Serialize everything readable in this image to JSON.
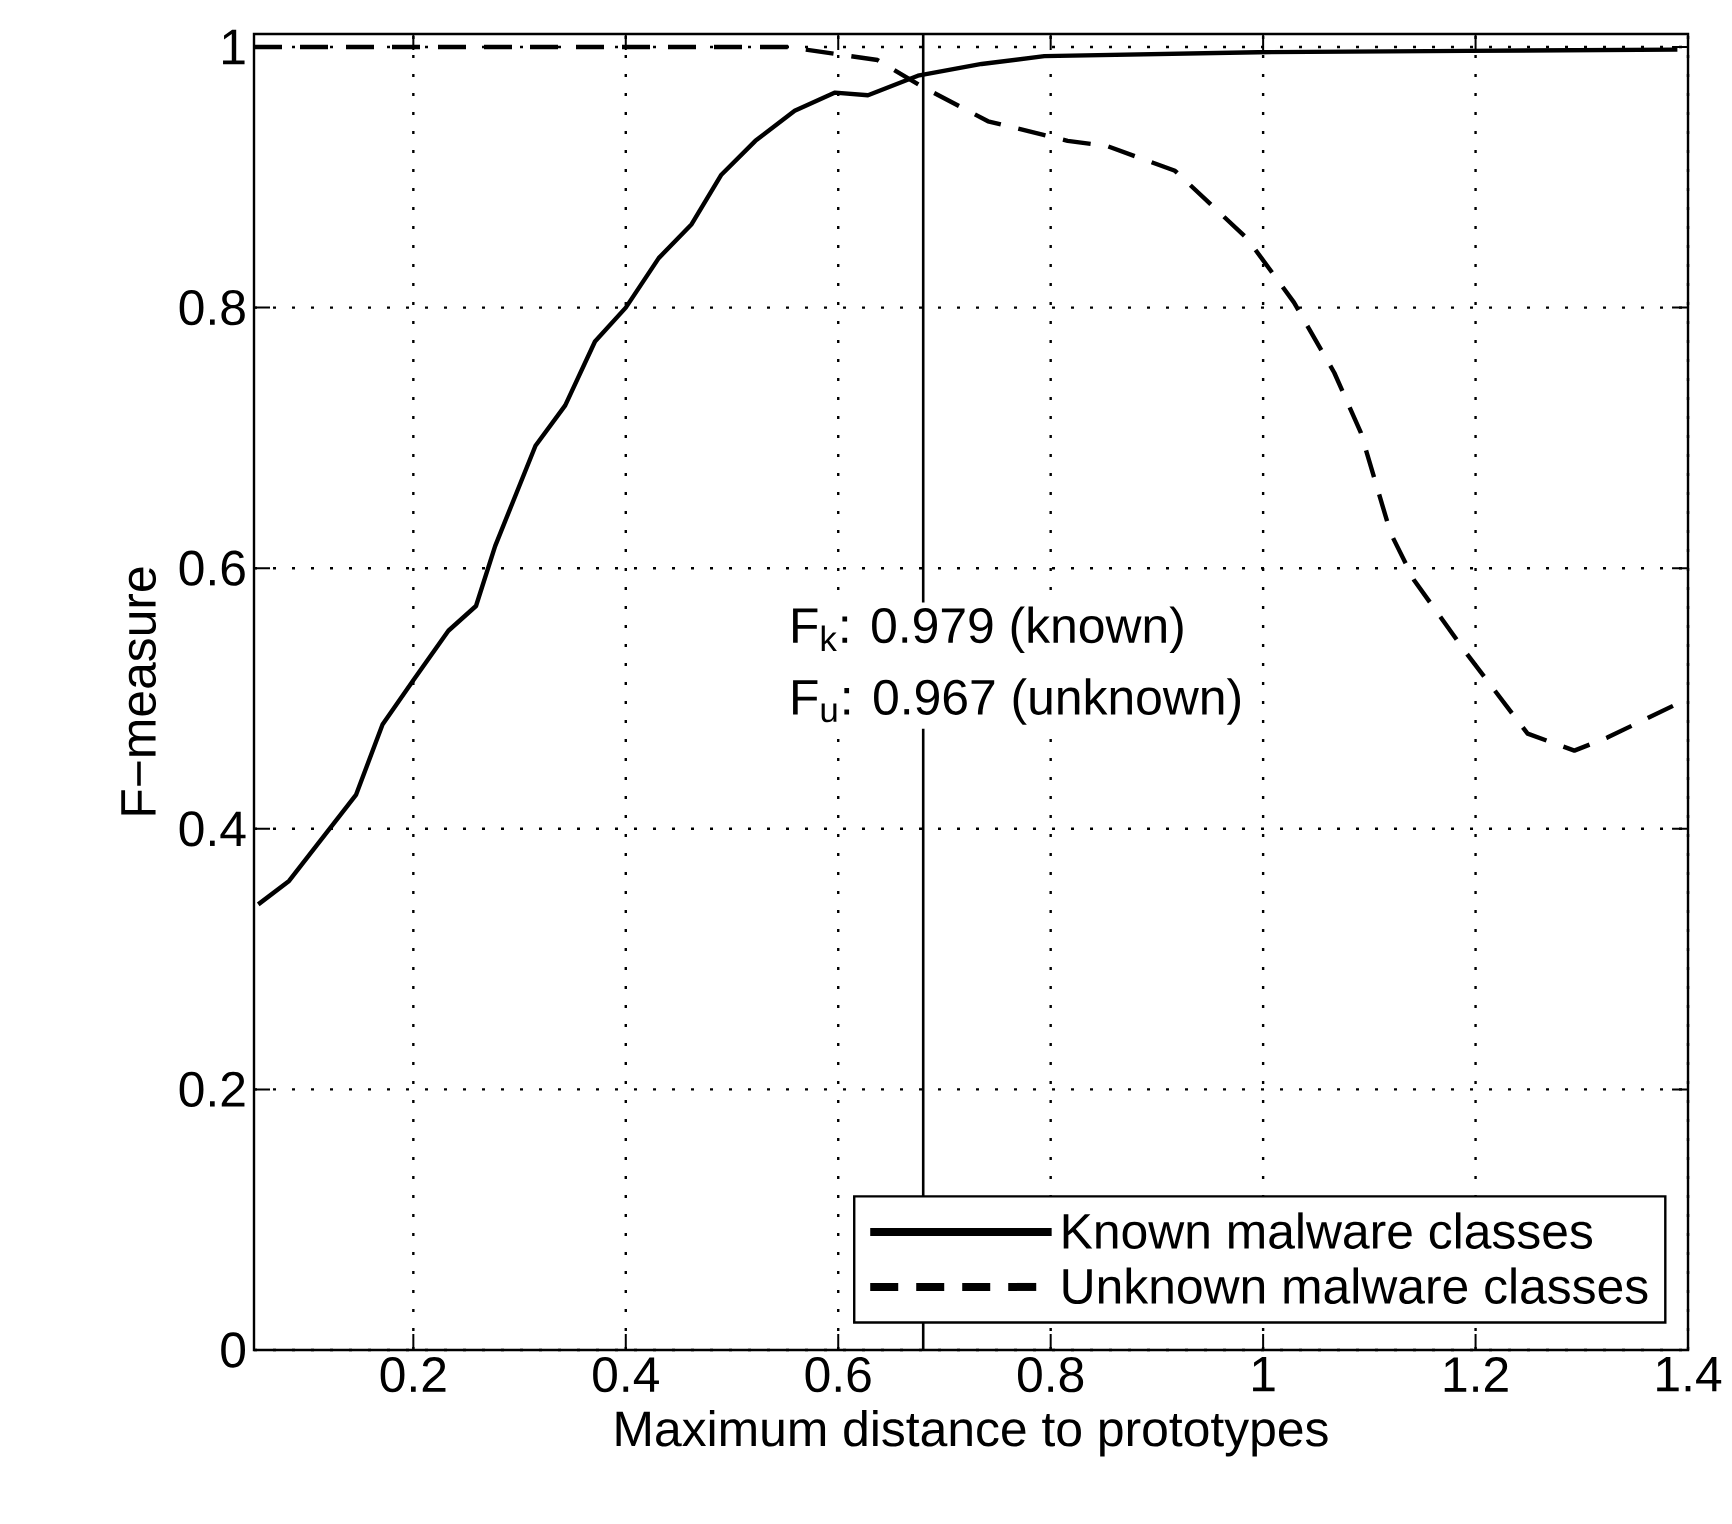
{
  "chart_data": {
    "type": "line",
    "xlabel": "Maximum distance to prototypes",
    "ylabel": "F−measure",
    "xlim": [
      0.05,
      1.4
    ],
    "ylim": [
      0,
      1.01
    ],
    "xticks": [
      0.2,
      0.4,
      0.6,
      0.8,
      1,
      1.2,
      1.4
    ],
    "yticks": [
      0,
      0.2,
      0.4,
      0.6,
      0.8,
      1
    ],
    "grid": true,
    "legend": "bottom right",
    "series": [
      {
        "name": "Known malware classes",
        "color": "#000000",
        "line_style": "solid",
        "x": [
          0.054,
          0.083,
          0.146,
          0.171,
          0.2,
          0.233,
          0.259,
          0.277,
          0.315,
          0.343,
          0.371,
          0.4,
          0.431,
          0.462,
          0.49,
          0.522,
          0.559,
          0.597,
          0.628,
          0.675,
          0.735,
          0.794,
          0.995,
          1.192,
          1.39
        ],
        "values": [
          0.342,
          0.36,
          0.426,
          0.48,
          0.514,
          0.552,
          0.571,
          0.617,
          0.694,
          0.725,
          0.774,
          0.8,
          0.838,
          0.864,
          0.902,
          0.928,
          0.951,
          0.965,
          0.963,
          0.978,
          0.987,
          0.993,
          0.996,
          0.997,
          0.998
        ]
      },
      {
        "name": "Unknown malware classes",
        "color": "#000000",
        "line_style": "dashed",
        "x": [
          0.05,
          0.3,
          0.552,
          0.637,
          0.678,
          0.741,
          0.816,
          0.853,
          0.917,
          0.985,
          1.029,
          1.067,
          1.092,
          1.12,
          1.142,
          1.192,
          1.249,
          1.293,
          1.324,
          1.39
        ],
        "values": [
          1.0,
          1.0,
          1.0,
          0.99,
          0.97,
          0.943,
          0.928,
          0.924,
          0.905,
          0.853,
          0.804,
          0.75,
          0.704,
          0.627,
          0.591,
          0.534,
          0.473,
          0.46,
          0.47,
          0.496
        ]
      }
    ],
    "ref_lines": [
      {
        "axis": "x",
        "value": 0.68,
        "color": "#000000"
      }
    ],
    "annotations": [
      "F$_{k}$: 0.979 (known)",
      "F$_{u}$: 0.967 (unknown)"
    ]
  }
}
